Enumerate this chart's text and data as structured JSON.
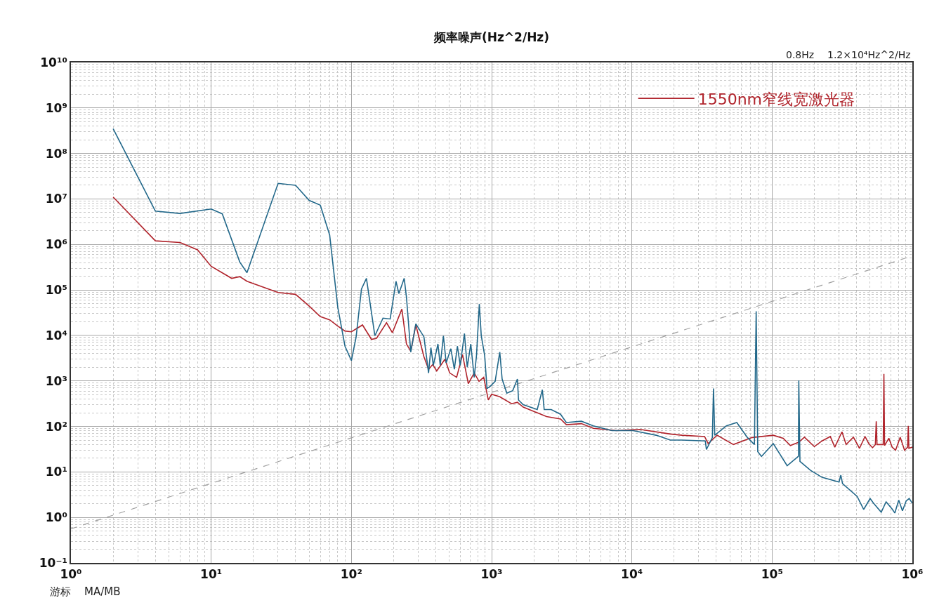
{
  "chart_data": {
    "type": "line",
    "title": "频率噪声(Hz^2/Hz)",
    "annotations": [
      "0.8Hz",
      "1.2×10⁴Hz^2/Hz",
      "游标",
      "MA/MB"
    ],
    "log": "xy",
    "grid": true,
    "legend": "top right",
    "xlim": [
      1,
      1000000
    ],
    "ylim": [
      0.1,
      10000000000
    ],
    "xticks": [
      {
        "value": 1,
        "label": "10⁰"
      },
      {
        "value": 10,
        "label": "10¹"
      },
      {
        "value": 100,
        "label": "10²"
      },
      {
        "value": 1000,
        "label": "10³"
      },
      {
        "value": 10000,
        "label": "10⁴"
      },
      {
        "value": 100000,
        "label": "10⁵"
      },
      {
        "value": 1000000,
        "label": "10⁶"
      }
    ],
    "yticks": [
      {
        "value": 0.1,
        "label": "10⁻¹"
      },
      {
        "value": 1,
        "label": "10⁰"
      },
      {
        "value": 10,
        "label": "10¹"
      },
      {
        "value": 100,
        "label": "10²"
      },
      {
        "value": 1000,
        "label": "10³"
      },
      {
        "value": 10000,
        "label": "10⁴"
      },
      {
        "value": 100000,
        "label": "10⁵"
      },
      {
        "value": 1000000,
        "label": "10⁶"
      },
      {
        "value": 10000000,
        "label": "10⁷"
      },
      {
        "value": 100000000,
        "label": "10⁸"
      },
      {
        "value": 1000000000,
        "label": "10⁹"
      },
      {
        "value": 10000000000,
        "label": "10¹⁰"
      }
    ],
    "series": [
      {
        "type": "line",
        "color": "#a0a0a0",
        "line_style": "dashed",
        "x": [
          1,
          1000000
        ],
        "values": [
          0.56,
          560000
        ]
      },
      {
        "name": "1550nm窄线宽激光器",
        "color": "#b0242c",
        "x": [
          2,
          4,
          6,
          8,
          10,
          14,
          16,
          18,
          30,
          40,
          50,
          60,
          70,
          80,
          90,
          100,
          120,
          139,
          151,
          178,
          196,
          229,
          247,
          265,
          288,
          329,
          355,
          380,
          406,
          465,
          502,
          563,
          620,
          682,
          751,
          813,
          878,
          947,
          1000,
          1143,
          1387,
          1527,
          1680,
          2033,
          2463,
          3100,
          3410,
          4370,
          5310,
          7780,
          11400,
          18800,
          22800,
          33000,
          35000,
          40500,
          53000,
          72000,
          102000,
          120000,
          135000,
          155000,
          170000,
          200000,
          227000,
          260000,
          280000,
          315000,
          337000,
          380000,
          420000,
          460000,
          489000,
          520000,
          545000,
          553000,
          560000,
          620000,
          627000,
          634000,
          680000,
          718000,
          760000,
          820000,
          880000,
          925000,
          936000,
          945000,
          1000000
        ],
        "values": [
          11000000,
          1200000,
          1100000,
          760000,
          330000,
          180000,
          196000,
          155000,
          88000,
          80000,
          44000,
          26000,
          22000,
          16000,
          12500,
          12000,
          17000,
          8200,
          8600,
          19000,
          11500,
          38000,
          6500,
          4500,
          17000,
          3400,
          1800,
          2300,
          1660,
          3000,
          1500,
          1200,
          3800,
          870,
          1500,
          980,
          1200,
          380,
          510,
          450,
          316,
          340,
          265,
          209,
          165,
          146,
          109,
          115,
          91,
          81,
          86,
          68,
          64,
          60,
          42,
          64,
          40,
          57,
          64,
          55,
          38,
          45,
          58,
          36,
          48,
          60,
          35,
          76,
          40,
          58,
          33,
          60,
          42,
          34,
          40,
          130,
          40,
          40,
          1420,
          38,
          55,
          35,
          30,
          58,
          30,
          35,
          103,
          33,
          35
        ]
      },
      {
        "color": "#22688a",
        "x": [
          2,
          4,
          6,
          10,
          12,
          16,
          18,
          30,
          40,
          50,
          60,
          70,
          80,
          90,
          100,
          108,
          118,
          128,
          147,
          168,
          189,
          208,
          218,
          238,
          247,
          265,
          288,
          329,
          355,
          369,
          384,
          414,
          430,
          453,
          474,
          512,
          542,
          570,
          597,
          640,
          670,
          710,
          751,
          780,
          817,
          843,
          892,
          927,
          980,
          1059,
          1143,
          1188,
          1283,
          1413,
          1527,
          1555,
          1680,
          1885,
          2114,
          2300,
          2370,
          2660,
          3100,
          3410,
          4370,
          5310,
          7210,
          10200,
          14900,
          18800,
          22800,
          33400,
          34000,
          37500,
          38200,
          39000,
          47200,
          56000,
          66700,
          74800,
          77000,
          79000,
          84000,
          102000,
          128000,
          154000,
          155000,
          158000,
          188000,
          227000,
          300000,
          309000,
          318000,
          404000,
          450000,
          500000,
          528000,
          600000,
          650000,
          718000,
          750000,
          800000,
          850000,
          904000,
          950000,
          1000000
        ],
        "values": [
          350000000,
          5400000,
          4800000,
          6000000,
          4700000,
          410000,
          240000,
          22000000,
          20000000,
          9300000,
          7300000,
          1600000,
          41000,
          5800,
          2800,
          9200,
          105000,
          180000,
          9800,
          24000,
          23000,
          155000,
          83000,
          180000,
          69000,
          4300,
          18000,
          9300,
          1500,
          5400,
          2200,
          6500,
          2200,
          9800,
          2500,
          5100,
          1800,
          5800,
          2200,
          11000,
          2000,
          6500,
          1200,
          3600,
          49000,
          10000,
          3600,
          680,
          770,
          980,
          4300,
          1100,
          540,
          610,
          1100,
          380,
          300,
          265,
          235,
          640,
          235,
          235,
          185,
          122,
          130,
          103,
          81,
          81,
          64,
          50,
          50,
          48,
          31,
          57,
          680,
          64,
          103,
          122,
          57,
          40,
          34000,
          28,
          22,
          42,
          13.7,
          22,
          1030,
          17,
          10.8,
          7.6,
          6.0,
          8.5,
          5.5,
          2.9,
          1.5,
          2.6,
          2.06,
          1.3,
          2.2,
          1.53,
          1.25,
          2.4,
          1.4,
          2.3,
          2.6,
          2.06
        ]
      }
    ]
  }
}
